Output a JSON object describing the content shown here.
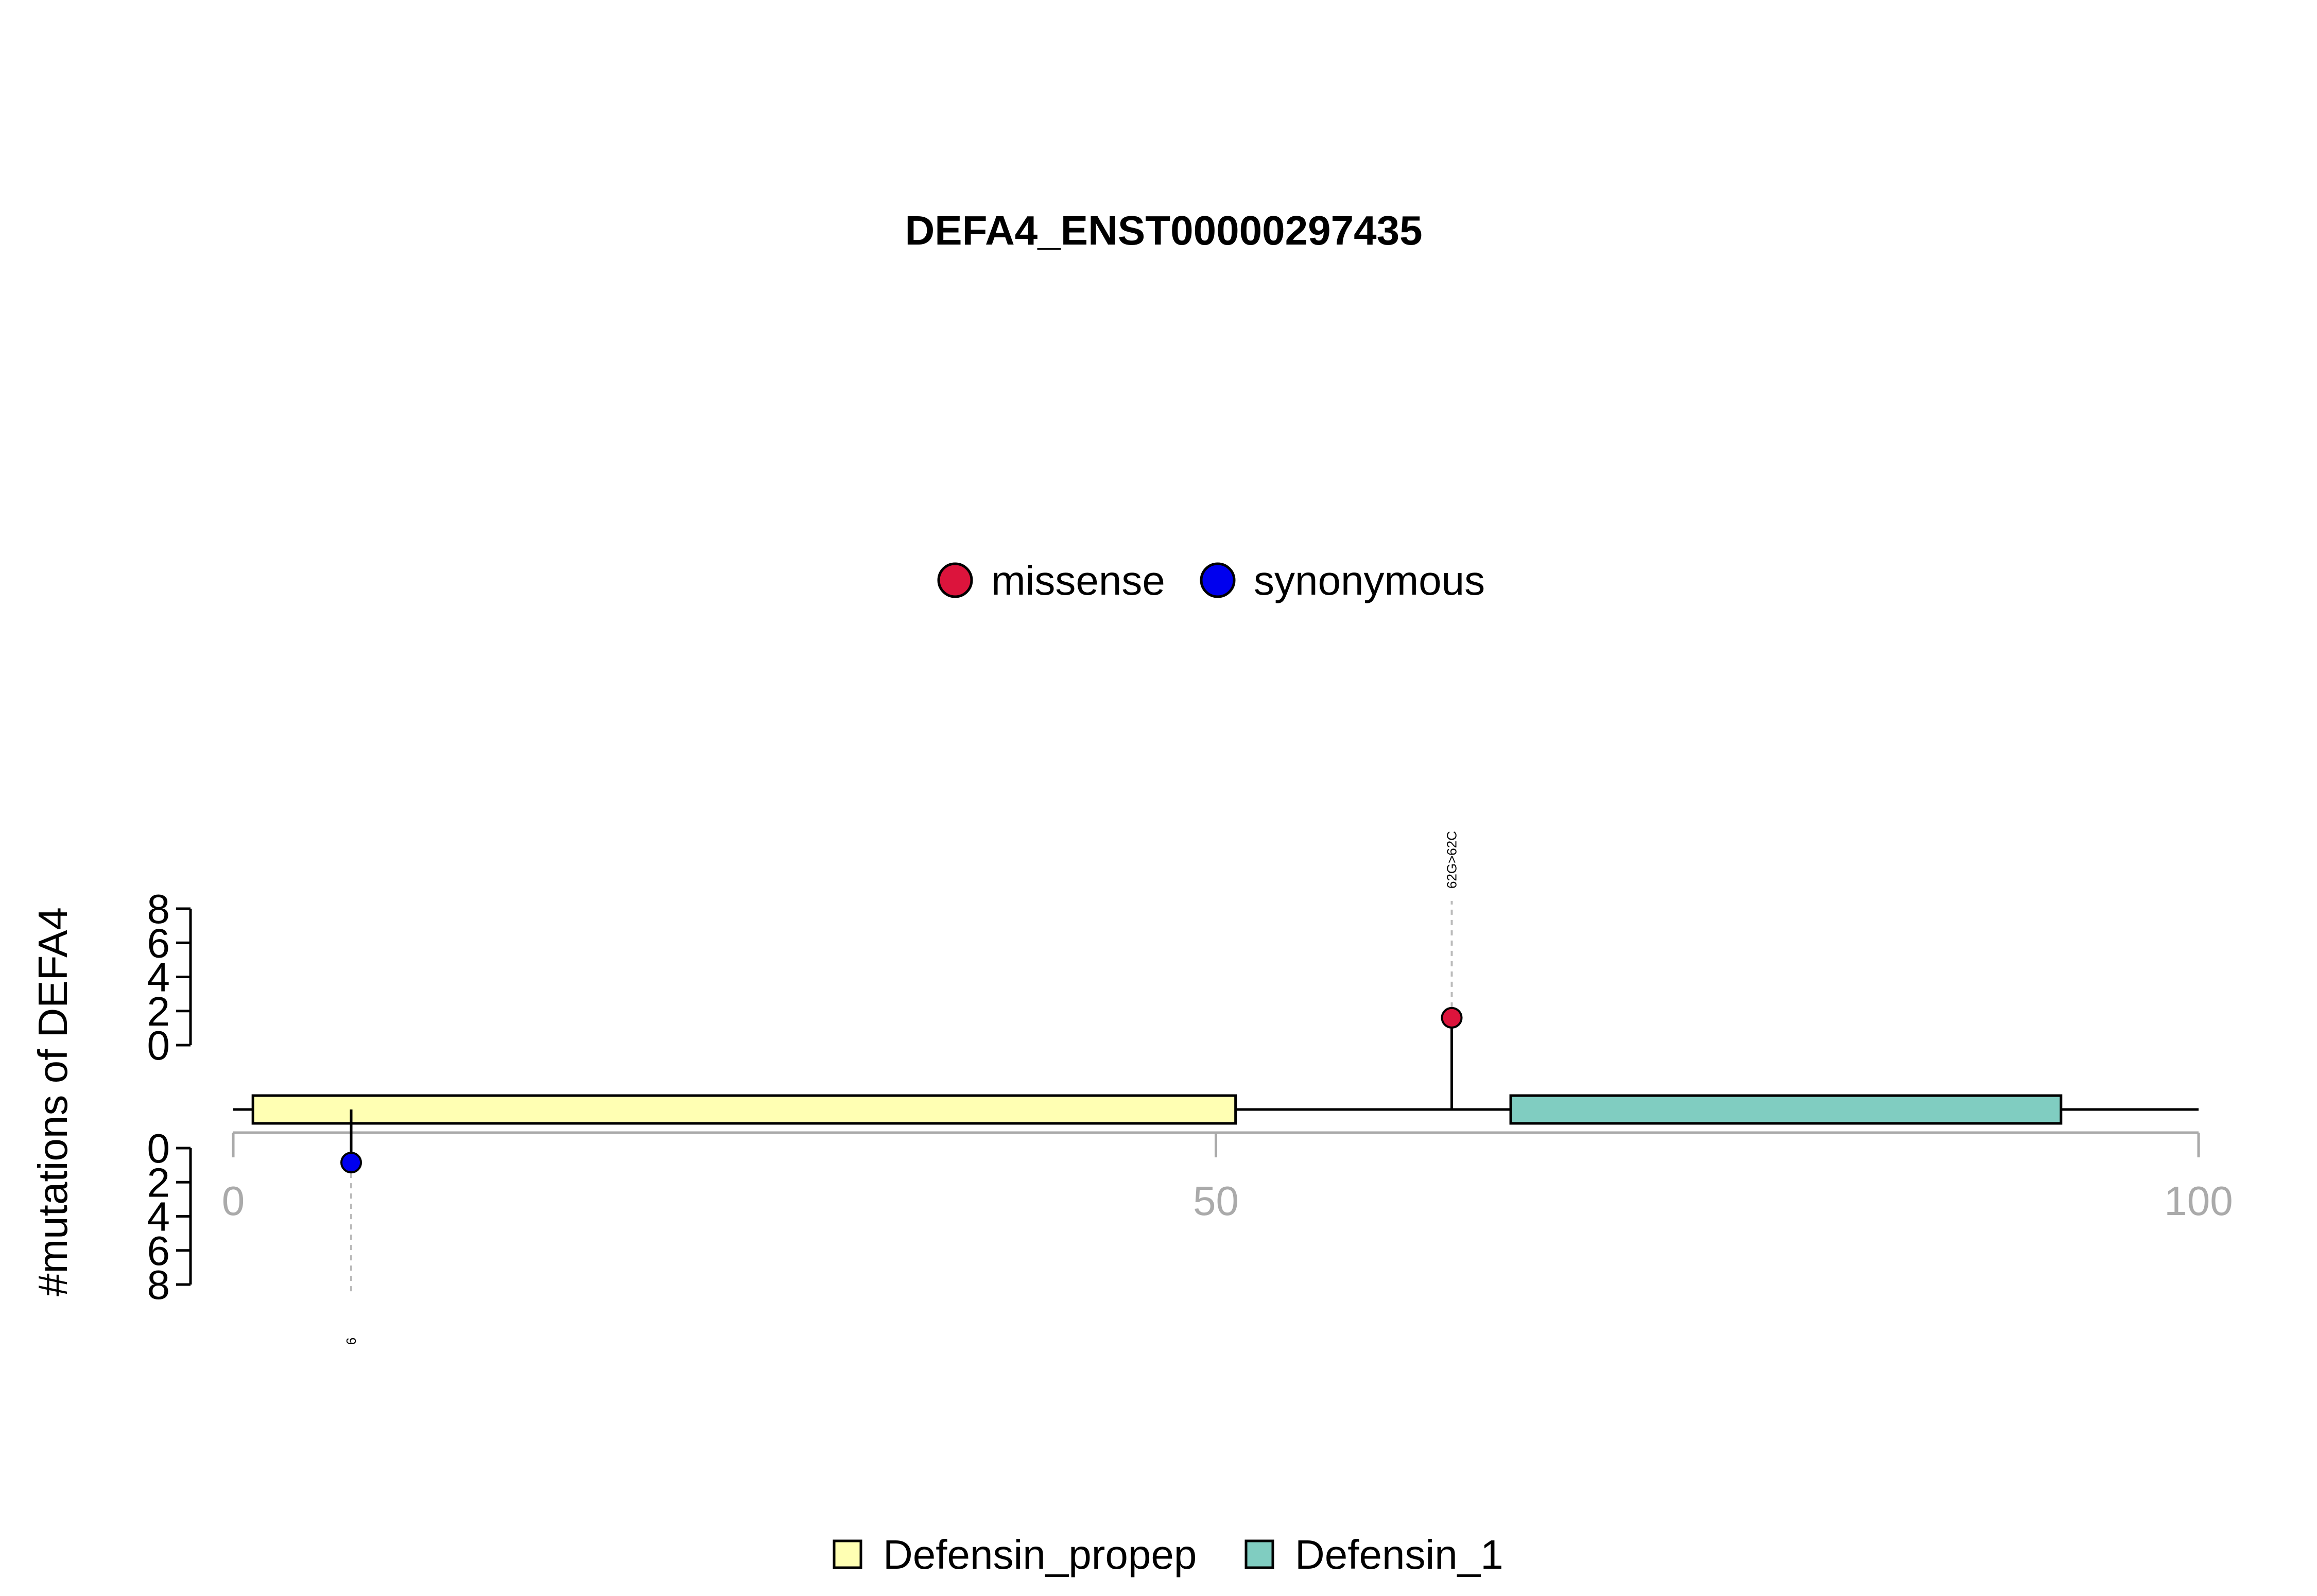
{
  "chart_data": {
    "type": "lollipop",
    "title": "DEFA4_ENST00000297435",
    "ylabel": "#mutations of DEFA4",
    "xlim": [
      0,
      100
    ],
    "x_ticks": [
      0,
      50,
      100
    ],
    "ylim_top": [
      0,
      8
    ],
    "ylim_bottom": [
      0,
      8
    ],
    "y_ticks_top": [
      0,
      2,
      4,
      6,
      8
    ],
    "y_ticks_bottom": [
      0,
      2,
      4,
      6,
      8
    ],
    "legend_mutation": [
      {
        "name": "missense",
        "color": "#dc143c"
      },
      {
        "name": "synonymous",
        "color": "#0000ee"
      }
    ],
    "legend_domain": [
      {
        "name": "Defensin_propep",
        "color": "#ffffb3"
      },
      {
        "name": "Defensin_1",
        "color": "#80cdc1"
      }
    ],
    "domains": [
      {
        "name": "Defensin_propep",
        "start": 1,
        "end": 51,
        "color": "#ffffb3"
      },
      {
        "name": "Defensin_1",
        "start": 65,
        "end": 93,
        "color": "#80cdc1"
      }
    ],
    "mutations": [
      {
        "position": 62,
        "count": 1,
        "type": "missense",
        "strand": "top",
        "label": "62G>62C",
        "color": "#dc143c"
      },
      {
        "position": 6,
        "count": 1,
        "type": "synonymous",
        "strand": "bottom",
        "label": "6",
        "color": "#0000ee"
      }
    ]
  }
}
